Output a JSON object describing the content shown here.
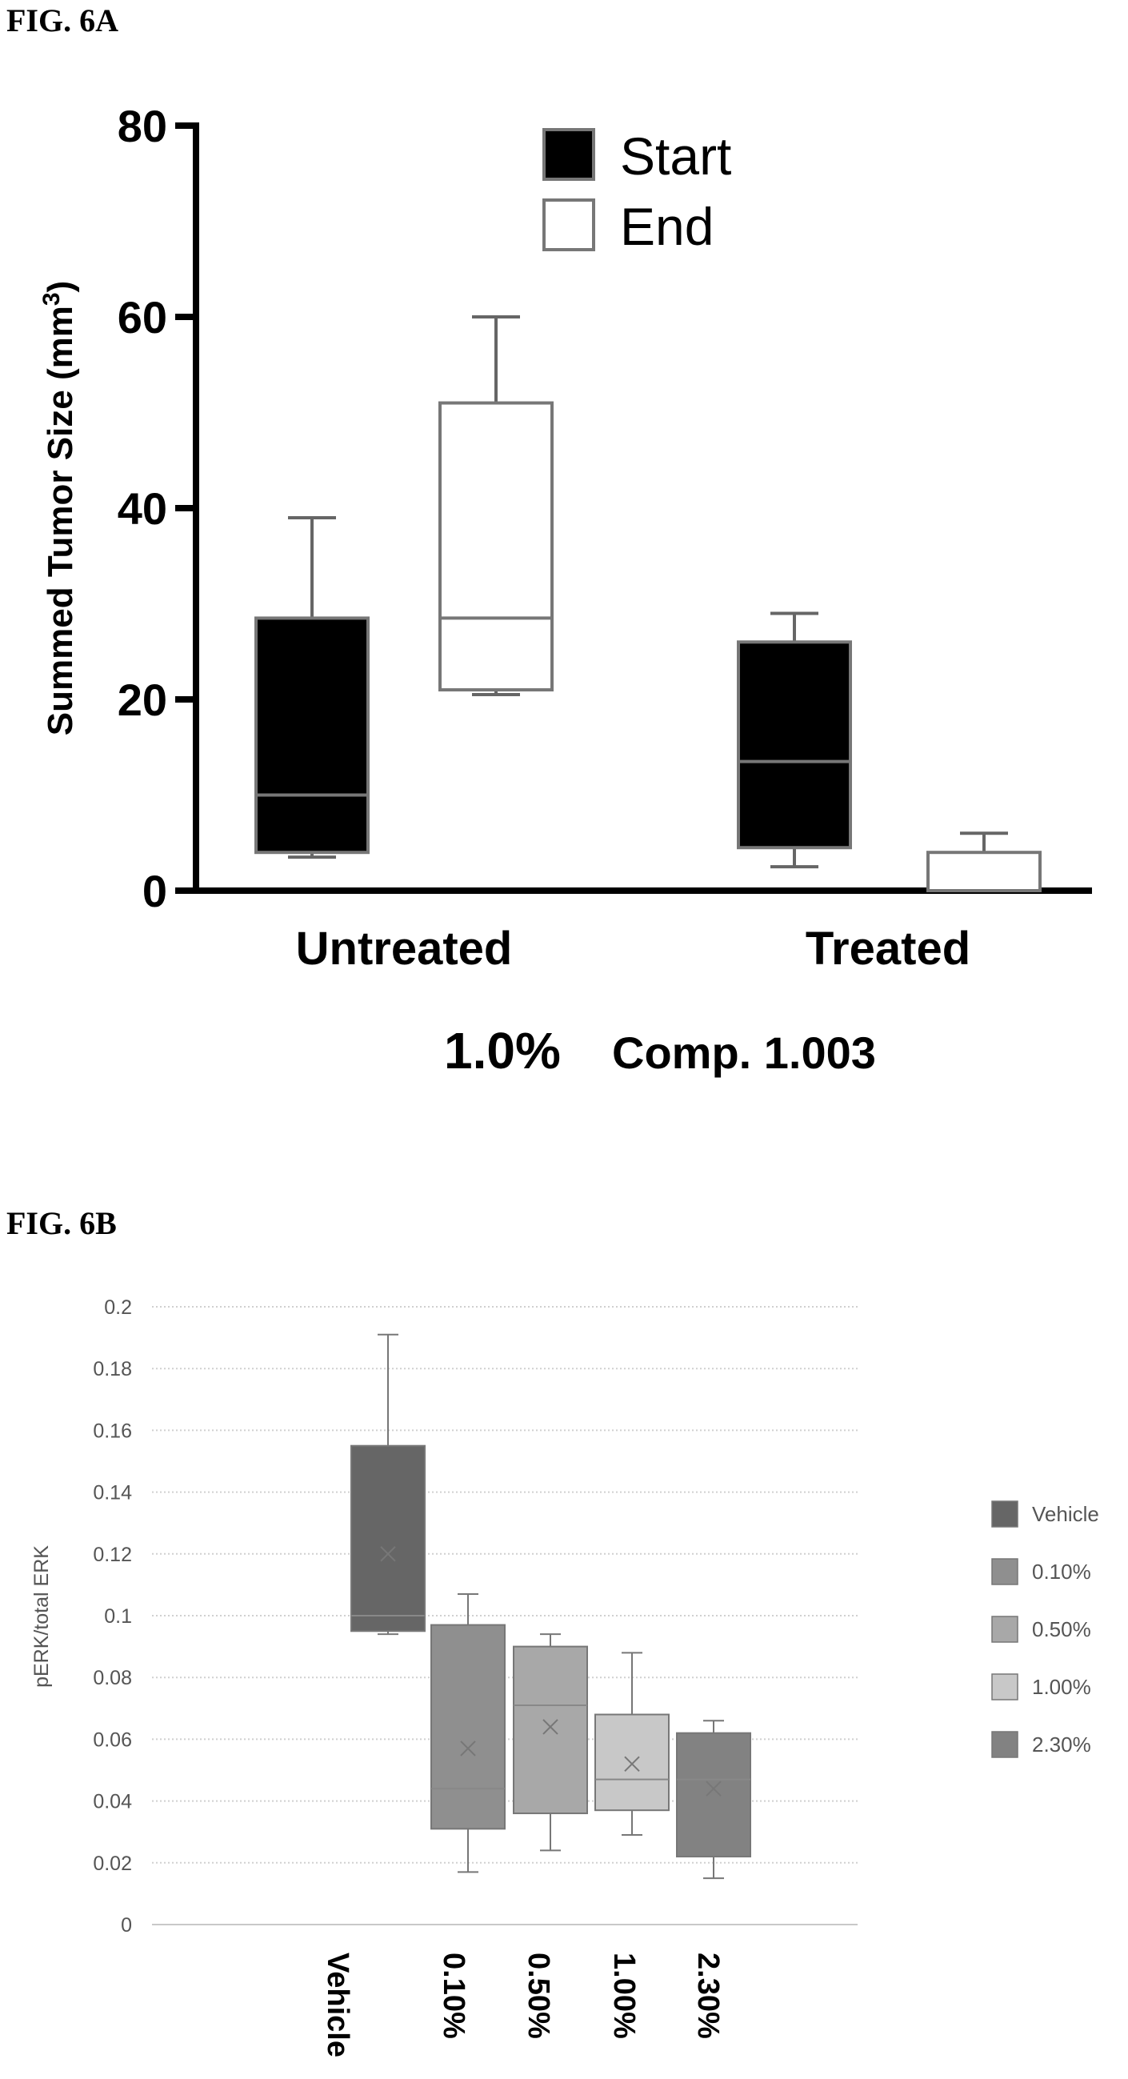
{
  "figures": {
    "fig_a_label": "FIG. 6A",
    "fig_b_label": "FIG. 6B"
  },
  "chart_data": [
    {
      "type": "boxplot",
      "ylabel_main": "Summed Tumor Size (mm",
      "ylabel_sup": "3",
      "ylabel_close": ")",
      "ylim": [
        0,
        80
      ],
      "yticks": [
        "0",
        "20",
        "40",
        "60",
        "80"
      ],
      "categories": [
        "Untreated",
        "Treated"
      ],
      "note_pct": "1.0%",
      "note_comp": "Comp. 1.003",
      "legend_position": "top-center",
      "series": [
        {
          "name": "Start",
          "color": "#000000",
          "boxes": [
            {
              "min": 3.5,
              "q1": 4,
              "median": 10,
              "q3": 28.5,
              "max": 39
            },
            {
              "min": 2.5,
              "q1": 4.5,
              "median": 13.5,
              "q3": 26,
              "max": 29
            }
          ]
        },
        {
          "name": "End",
          "color": "#ffffff",
          "boxes": [
            {
              "min": 20.5,
              "q1": 21,
              "median": 28.5,
              "q3": 51,
              "max": 60
            },
            {
              "min": 0,
              "q1": 0,
              "median": 0,
              "q3": 4,
              "max": 6
            }
          ]
        }
      ]
    },
    {
      "type": "boxplot",
      "ylabel": "pERK/total ERK",
      "ylim": [
        0,
        0.2
      ],
      "yticks": [
        "0",
        "0.02",
        "0.04",
        "0.06",
        "0.08",
        "0.1",
        "0.12",
        "0.14",
        "0.16",
        "0.18",
        "0.2"
      ],
      "grid": true,
      "legend_position": "right",
      "series": [
        {
          "name": "Vehicle",
          "color": "#666666",
          "min": 0.094,
          "q1": 0.095,
          "median": 0.1,
          "q3": 0.155,
          "max": 0.191,
          "mean": 0.12
        },
        {
          "name": "0.10%",
          "color": "#8f8f8f",
          "min": 0.017,
          "q1": 0.031,
          "median": 0.044,
          "q3": 0.097,
          "max": 0.107,
          "mean": 0.057
        },
        {
          "name": "0.50%",
          "color": "#a8a8a8",
          "min": 0.024,
          "q1": 0.036,
          "median": 0.071,
          "q3": 0.09,
          "max": 0.094,
          "mean": 0.064
        },
        {
          "name": "1.00%",
          "color": "#c8c8c8",
          "min": 0.029,
          "q1": 0.037,
          "median": 0.047,
          "q3": 0.068,
          "max": 0.088,
          "mean": 0.052
        },
        {
          "name": "2.30%",
          "color": "#828282",
          "min": 0.015,
          "q1": 0.022,
          "median": 0.047,
          "q3": 0.062,
          "max": 0.066,
          "mean": 0.044
        }
      ]
    }
  ]
}
